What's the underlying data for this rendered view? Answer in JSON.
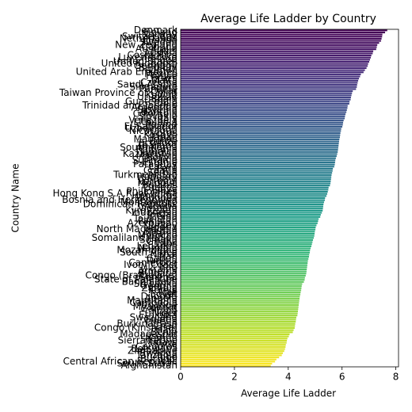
{
  "chart_data": {
    "type": "barh",
    "title": "Average Life Ladder by Country",
    "xlabel": "Average Life Ladder",
    "ylabel": "Country Name",
    "colormap": "viridis",
    "categories": [
      "Denmark",
      "Finland",
      "Norway",
      "Switzerland",
      "Netherlands",
      "Iceland",
      "Sweden",
      "New Zealand",
      "Canada",
      "Australia",
      "Israel",
      "Austria",
      "Costa Rica",
      "Luxembourg",
      "Ireland",
      "United States",
      "United Kingdom",
      "Germany",
      "Belgium",
      "Oman",
      "United Arab Emirates",
      "Mexico",
      "France",
      "Brazil",
      "Malta",
      "Czechia",
      "Saudi Arabia",
      "Singapore",
      "Panama",
      "Qatar",
      "Taiwan Province of China",
      "Kuwait",
      "Uruguay",
      "Spain",
      "Guatemala",
      "Chile",
      "Trinidad and Tobago",
      "Argentina",
      "Slovenia",
      "Bahrain",
      "Colombia",
      "Slovakia",
      "Italy",
      "Venezuela",
      "Lithuania",
      "Poland",
      "El Salvador",
      "Uzbekistan",
      "Nicaragua",
      "Cyprus",
      "Kosovo",
      "Japan",
      "Mauritius",
      "Belize",
      "Ecuador",
      "Thailand",
      "South Korea",
      "Romania",
      "Jamaica",
      "Kazakhstan",
      "Malaysia",
      "Bolivia",
      "Suriname",
      "Estonia",
      "Paraguay",
      "Latvia",
      "Peru",
      "Croatia",
      "Serbia",
      "Turkmenistan",
      "Hungary",
      "Russia",
      "Portugal",
      "Moldova",
      "Belarus",
      "Greece",
      "Libya",
      "Philippines",
      "Hong Kong S.A.R. of China",
      "Honduras",
      "Mongolia",
      "Bosnia and Herzegovina",
      "Montenegro",
      "Dominican Republic",
      "Algeria",
      "Vietnam",
      "Kyrgyzstan",
      "Indonesia",
      "Jordan",
      "China",
      "Tajikistan",
      "Pakistan",
      "Azerbaijan",
      "Turkey",
      "Nigeria",
      "North Macedonia",
      "Bhutan",
      "Albania",
      "Morocco",
      "Somaliland region",
      "Somalia",
      "Ghana",
      "Laos",
      "Lebanon",
      "Namibia",
      "Mozambique",
      "South Africa",
      "Nepal",
      "Iran",
      "Gabon",
      "Tunisia",
      "Cameroon",
      "Ivory Coast",
      "Iraq",
      "Ukraine",
      "Armenia",
      "Bulgaria",
      "Congo (Brazzaville)",
      "Senegal",
      "State of Palestine",
      "Bangladesh",
      "Sri Lanka",
      "Georgia",
      "Zambia",
      "Kenya",
      "Mali",
      "Egypt",
      "Djibouti",
      "Angola",
      "Mauritania",
      "Cambodia",
      "Uganda",
      "Myanmar",
      "Gambia",
      "India",
      "Niger",
      "Ethiopia",
      "Swaziland",
      "Guinea",
      "Liberia",
      "Burkina Faso",
      "Chad",
      "Congo (Kinshasa)",
      "Haiti",
      "Benin",
      "Madagascar",
      "Lesotho",
      "Yemen",
      "Sierra Leone",
      "Malawi",
      "Syria",
      "Comoros",
      "Botswana",
      "Zimbabwe",
      "Rwanda",
      "Tanzania",
      "Togo",
      "Burundi",
      "Central African Republic",
      "South Sudan",
      "Afghanistan"
    ],
    "values": [
      7.68,
      7.6,
      7.5,
      7.49,
      7.47,
      7.45,
      7.38,
      7.31,
      7.29,
      7.27,
      7.16,
      7.14,
      7.09,
      7.07,
      7.04,
      7.01,
      6.97,
      6.95,
      6.91,
      6.85,
      6.8,
      6.7,
      6.67,
      6.63,
      6.6,
      6.58,
      6.56,
      6.55,
      6.52,
      6.4,
      6.37,
      6.35,
      6.33,
      6.32,
      6.28,
      6.27,
      6.21,
      6.2,
      6.18,
      6.16,
      6.13,
      6.11,
      6.1,
      6.06,
      6.04,
      6.03,
      6.01,
      5.97,
      5.96,
      5.94,
      5.93,
      5.92,
      5.9,
      5.89,
      5.88,
      5.87,
      5.86,
      5.85,
      5.84,
      5.82,
      5.8,
      5.77,
      5.75,
      5.74,
      5.73,
      5.71,
      5.66,
      5.65,
      5.63,
      5.61,
      5.6,
      5.59,
      5.58,
      5.57,
      5.55,
      5.5,
      5.49,
      5.47,
      5.45,
      5.42,
      5.37,
      5.36,
      5.33,
      5.31,
      5.3,
      5.29,
      5.28,
      5.25,
      5.21,
      5.19,
      5.13,
      5.11,
      5.09,
      5.05,
      5.02,
      5.01,
      4.99,
      4.98,
      4.97,
      4.95,
      4.92,
      4.9,
      4.88,
      4.86,
      4.83,
      4.81,
      4.8,
      4.78,
      4.77,
      4.75,
      4.73,
      4.72,
      4.71,
      4.7,
      4.69,
      4.68,
      4.67,
      4.65,
      4.62,
      4.61,
      4.58,
      4.52,
      4.5,
      4.49,
      4.48,
      4.46,
      4.45,
      4.43,
      4.42,
      4.41,
      4.4,
      4.39,
      4.38,
      4.37,
      4.36,
      4.35,
      4.34,
      4.3,
      4.29,
      4.28,
      4.26,
      4.25,
      4.24,
      4.2,
      4.17,
      4.05,
      4.02,
      3.97,
      3.95,
      3.94,
      3.91,
      3.9,
      3.88,
      3.85,
      3.8,
      3.76,
      3.66,
      3.56,
      3.51,
      3.4,
      3.35
    ],
    "xlim": [
      0,
      8.1
    ],
    "xticks": [
      0,
      2,
      4,
      6,
      8
    ]
  }
}
